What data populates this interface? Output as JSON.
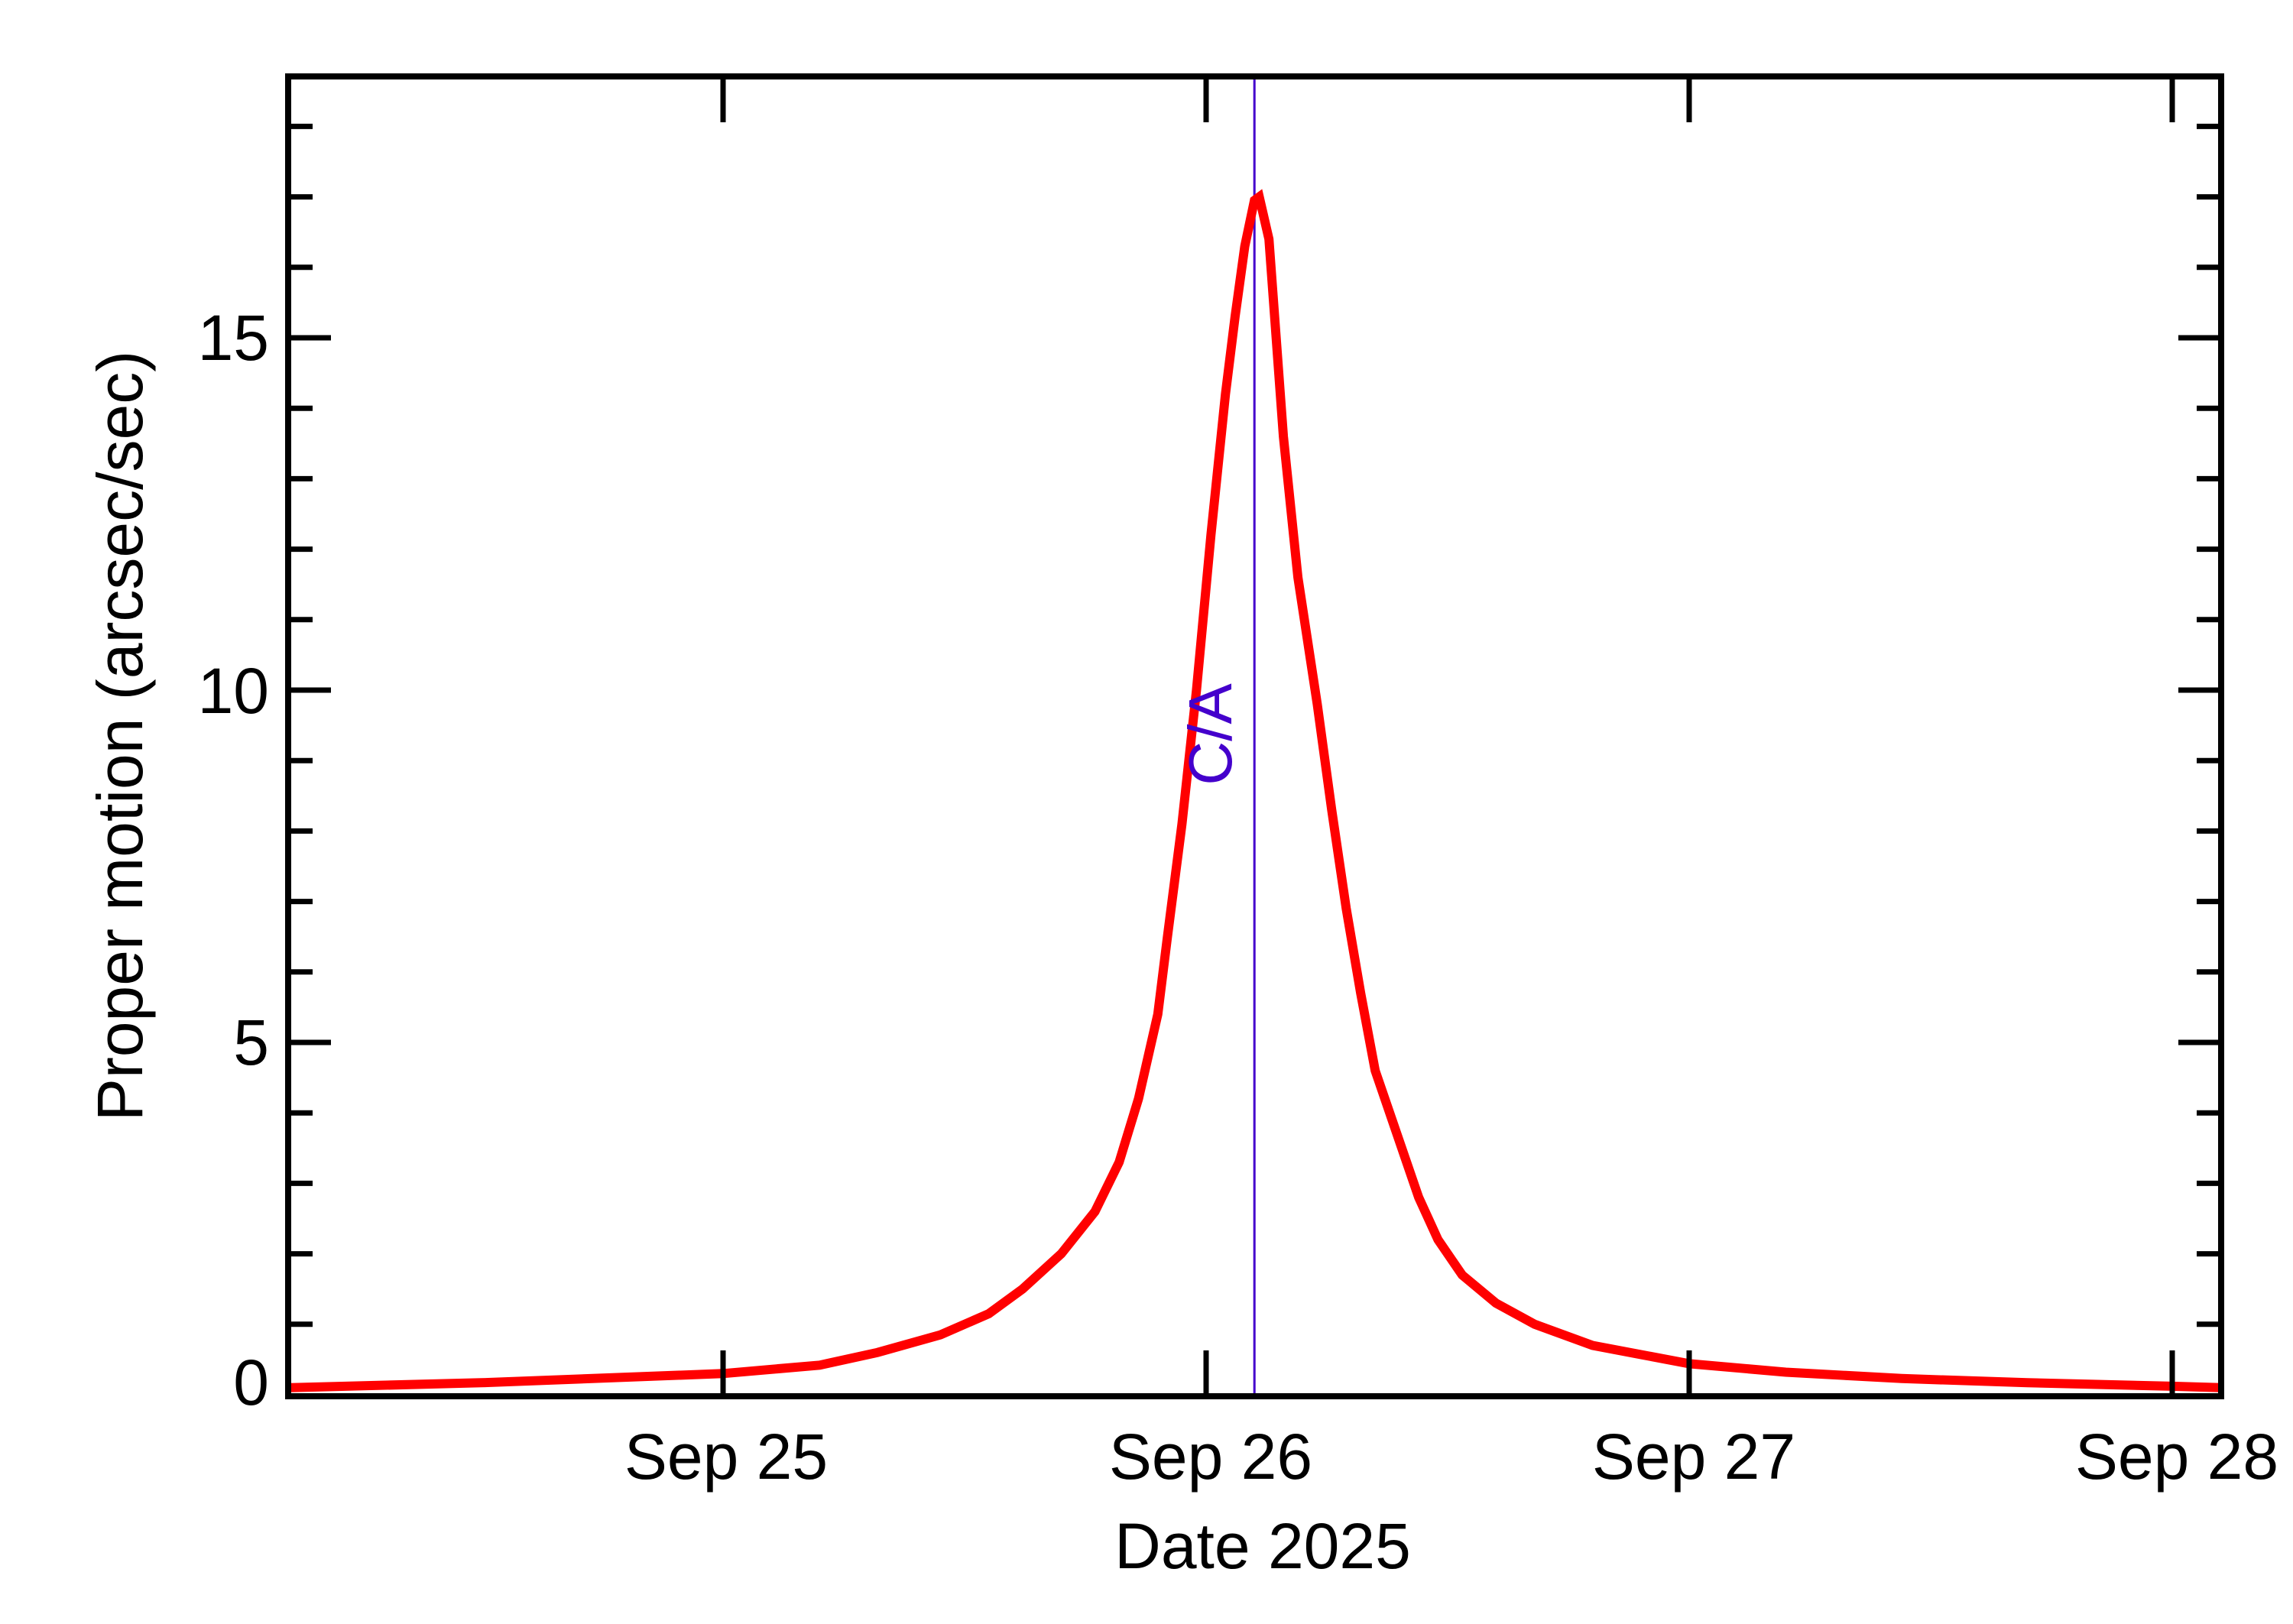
{
  "chart_data": {
    "type": "line",
    "title": "",
    "xlabel": "Date 2025",
    "ylabel": "Proper motion (arcsec/sec)",
    "x_unit": "day of September 2025",
    "xlim": [
      24.1,
      28.1
    ],
    "ylim": [
      0,
      18.7
    ],
    "grid": false,
    "legend": null,
    "x_ticks": [
      {
        "value": 25,
        "label": "Sep 25"
      },
      {
        "value": 26,
        "label": "Sep 26"
      },
      {
        "value": 27,
        "label": "Sep 27"
      },
      {
        "value": 28,
        "label": "Sep 28"
      }
    ],
    "y_ticks": [
      {
        "value": 0,
        "label": "0"
      },
      {
        "value": 5,
        "label": "5"
      },
      {
        "value": 10,
        "label": "10"
      },
      {
        "value": 15,
        "label": "15"
      }
    ],
    "y_minor_step": 1,
    "series": [
      {
        "name": "Proper motion",
        "color": "#ff0000",
        "x": [
          24.1,
          24.5,
          25.0,
          25.2,
          25.32,
          25.45,
          25.55,
          25.62,
          25.7,
          25.77,
          25.82,
          25.86,
          25.9,
          25.92,
          25.95,
          25.98,
          26.01,
          26.04,
          26.06,
          26.08,
          26.1,
          26.11,
          26.13,
          26.16,
          26.19,
          26.23,
          26.26,
          26.29,
          26.32,
          26.35,
          26.4,
          26.44,
          26.48,
          26.53,
          26.6,
          26.68,
          26.8,
          27.0,
          27.2,
          27.44,
          27.7,
          28.0,
          28.1
        ],
        "values": [
          0.1,
          0.17,
          0.3,
          0.42,
          0.6,
          0.85,
          1.15,
          1.5,
          2.0,
          2.6,
          3.3,
          4.2,
          5.4,
          6.5,
          8.1,
          10.0,
          12.2,
          14.2,
          15.3,
          16.3,
          16.95,
          17.0,
          16.4,
          13.6,
          11.6,
          9.8,
          8.3,
          6.9,
          5.7,
          4.6,
          3.6,
          2.8,
          2.2,
          1.7,
          1.3,
          1.0,
          0.7,
          0.44,
          0.32,
          0.23,
          0.17,
          0.12,
          0.1
        ]
      }
    ],
    "annotations": [
      {
        "type": "vline",
        "x": 26.1,
        "label": "C/A",
        "color": "#4400cc"
      }
    ],
    "peak": {
      "x": 26.1,
      "value": 17.0
    }
  },
  "labels": {
    "xlabel": "Date 2025",
    "ylabel": "Proper motion (arcsec/sec)",
    "ca": "C/A",
    "xticks": [
      "Sep 25",
      "Sep 26",
      "Sep 27",
      "Sep 28"
    ],
    "yticks": [
      "0",
      "5",
      "10",
      "15"
    ]
  }
}
